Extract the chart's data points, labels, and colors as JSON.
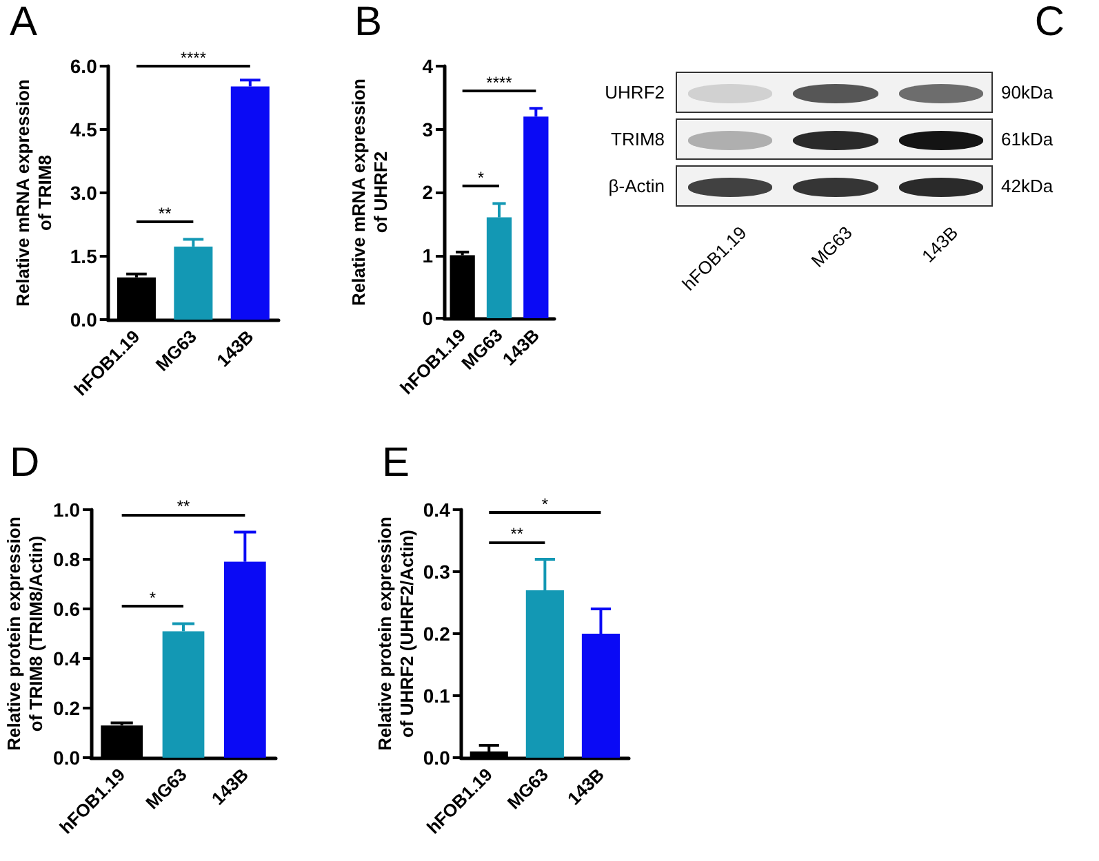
{
  "chart_data": [
    {
      "type": "bar",
      "title": "A",
      "ylabel": "Relative mRNA expression of TRIM8",
      "categories": [
        "hFOB1.19",
        "MG63",
        "143B"
      ],
      "values": [
        1.0,
        1.73,
        5.52
      ],
      "errors": [
        0.08,
        0.17,
        0.15
      ],
      "colors": [
        "#000000",
        "#1398b4",
        "#0a0af5"
      ],
      "ylim": [
        0,
        6
      ],
      "yticks": [
        {
          "value": 0,
          "label": "0.0"
        },
        {
          "value": 1.5,
          "label": "1.5"
        },
        {
          "value": 3,
          "label": "3.0"
        },
        {
          "value": 4.5,
          "label": "4.5"
        },
        {
          "value": 6,
          "label": "6.0"
        }
      ],
      "annotations": [
        "**",
        "****"
      ]
    },
    {
      "type": "bar",
      "title": "B",
      "ylabel": "Relative mRNA expression of UHRF2",
      "categories": [
        "hFOB1.19",
        "MG63",
        "143B"
      ],
      "values": [
        1.0,
        1.6,
        3.2
      ],
      "errors": [
        0.05,
        0.22,
        0.13
      ],
      "colors": [
        "#000000",
        "#1398b4",
        "#0a0af5"
      ],
      "ylim": [
        0,
        4
      ],
      "yticks": [
        0,
        1,
        2,
        3,
        4
      ],
      "annotations": [
        "*",
        "****"
      ]
    },
    {
      "type": "other",
      "title": "C",
      "categories": [
        "hFOB1.19",
        "MG63",
        "143B"
      ],
      "y_categories": [
        "UHRF2",
        "TRIM8",
        "β-Actin"
      ],
      "y2_categories": [
        "90kDa",
        "61kDa",
        "42kDa"
      ]
    },
    {
      "type": "bar",
      "title": "D",
      "ylabel": "Relative protein expression of TRIM8 (TRIM8/Actin)",
      "categories": [
        "hFOB1.19",
        "MG63",
        "143B"
      ],
      "values": [
        0.13,
        0.51,
        0.79
      ],
      "errors": [
        0.01,
        0.03,
        0.12
      ],
      "colors": [
        "#000000",
        "#1398b4",
        "#0a0af5"
      ],
      "ylim": [
        0,
        1
      ],
      "yticks": [
        {
          "value": 0,
          "label": "0.0"
        },
        {
          "value": 0.2,
          "label": "0.2"
        },
        {
          "value": 0.4,
          "label": "0.4"
        },
        {
          "value": 0.6,
          "label": "0.6"
        },
        {
          "value": 0.8,
          "label": "0.8"
        },
        {
          "value": 1,
          "label": "1.0"
        }
      ],
      "annotations": [
        "*",
        "**"
      ]
    },
    {
      "type": "bar",
      "title": "E",
      "ylabel": "Relative protein expression of UHRF2 (UHRF2/Actin)",
      "categories": [
        "hFOB1.19",
        "MG63",
        "143B"
      ],
      "values": [
        0.01,
        0.27,
        0.2
      ],
      "errors": [
        0.01,
        0.05,
        0.04
      ],
      "colors": [
        "#000000",
        "#1398b4",
        "#0a0af5"
      ],
      "ylim": [
        0,
        0.4
      ],
      "yticks": [
        {
          "value": 0,
          "label": "0.0"
        },
        {
          "value": 0.1,
          "label": "0.1"
        },
        {
          "value": 0.2,
          "label": "0.2"
        },
        {
          "value": 0.3,
          "label": "0.3"
        },
        {
          "value": 0.4,
          "label": "0.4"
        }
      ],
      "annotations": [
        "**",
        "*"
      ]
    }
  ]
}
